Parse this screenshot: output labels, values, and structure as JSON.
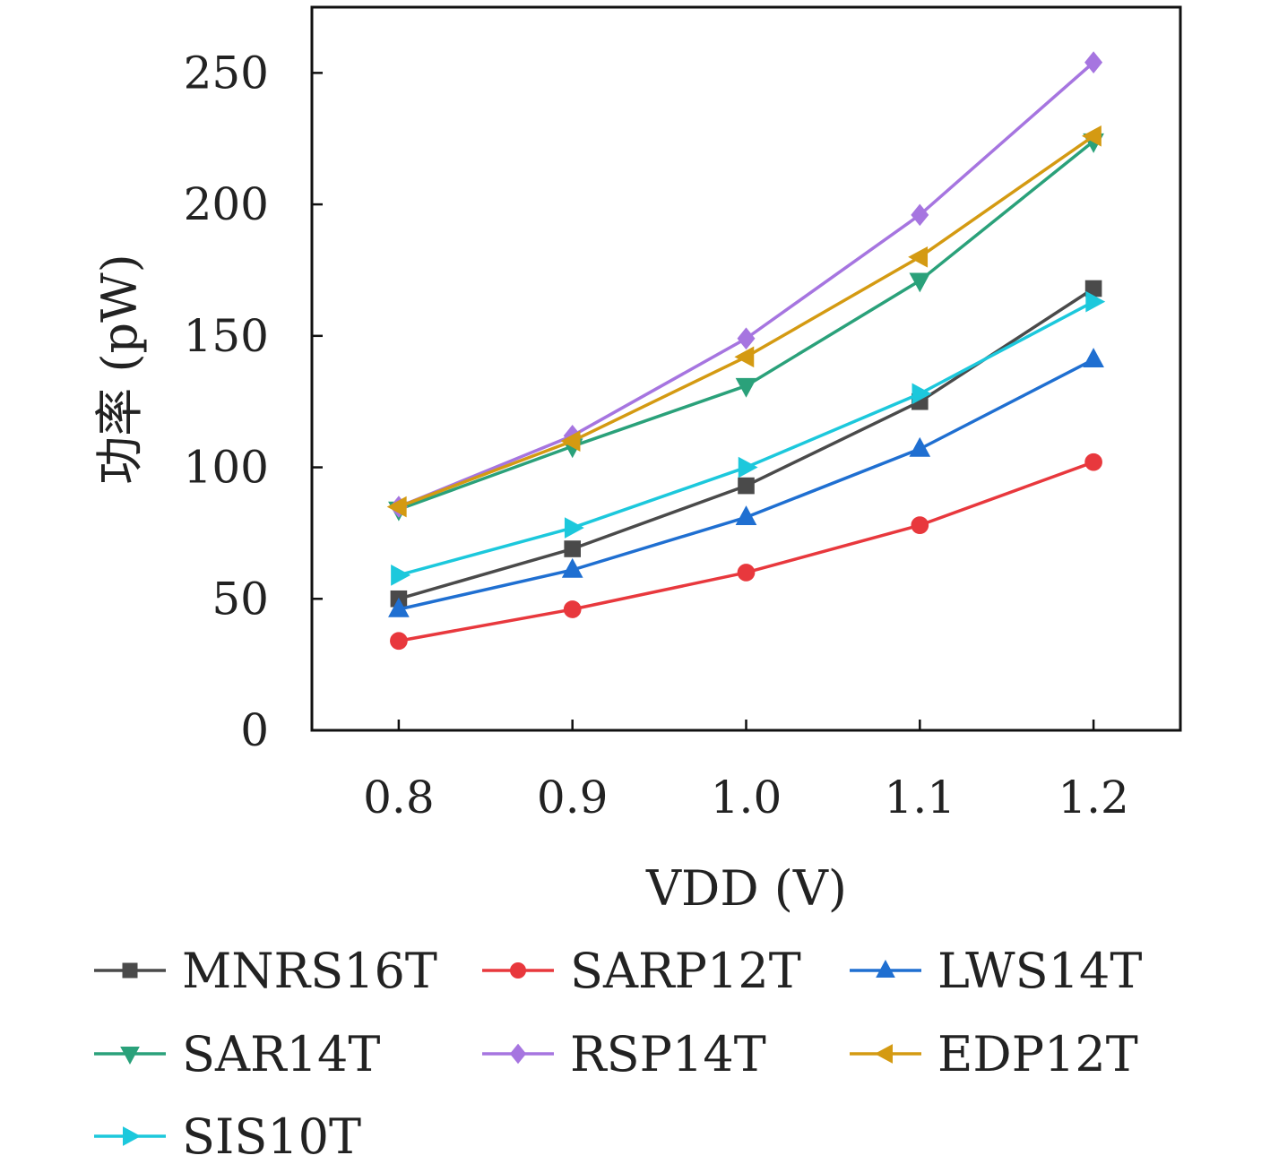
{
  "chart_data": {
    "type": "line",
    "title": "",
    "xlabel": "VDD (V)",
    "ylabel": "功率 (pW)",
    "x": [
      0.8,
      0.9,
      1.0,
      1.1,
      1.2
    ],
    "x_tick_labels": [
      "0.8",
      "0.9",
      "1.0",
      "1.1",
      "1.2"
    ],
    "xlim": [
      0.75,
      1.25
    ],
    "ylim": [
      0,
      275
    ],
    "y_ticks": [
      0,
      50,
      100,
      150,
      200,
      250
    ],
    "y_tick_labels": [
      "0",
      "50",
      "100",
      "150",
      "200",
      "250"
    ],
    "grid": false,
    "legend_position": "bottom",
    "series": [
      {
        "name": "MNRS16T",
        "color": "#4a4a4a",
        "marker": "square",
        "values": [
          50,
          69,
          93,
          125,
          168
        ]
      },
      {
        "name": "SARP12T",
        "color": "#e8383d",
        "marker": "circle",
        "values": [
          34,
          46,
          60,
          78,
          102
        ]
      },
      {
        "name": "LWS14T",
        "color": "#1f6fd1",
        "marker": "triangle-up",
        "values": [
          46,
          61,
          81,
          107,
          141
        ]
      },
      {
        "name": "SAR14T",
        "color": "#2aa17a",
        "marker": "triangle-down",
        "values": [
          84,
          108,
          131,
          171,
          224
        ]
      },
      {
        "name": "RSP14T",
        "color": "#a675e0",
        "marker": "diamond",
        "values": [
          85,
          112,
          149,
          196,
          254
        ]
      },
      {
        "name": "EDP12T",
        "color": "#d49a12",
        "marker": "triangle-left",
        "values": [
          85,
          110,
          142,
          180,
          226
        ]
      },
      {
        "name": "SIS10T",
        "color": "#1cc8dc",
        "marker": "triangle-right",
        "values": [
          59,
          77,
          100,
          128,
          163
        ]
      }
    ]
  }
}
